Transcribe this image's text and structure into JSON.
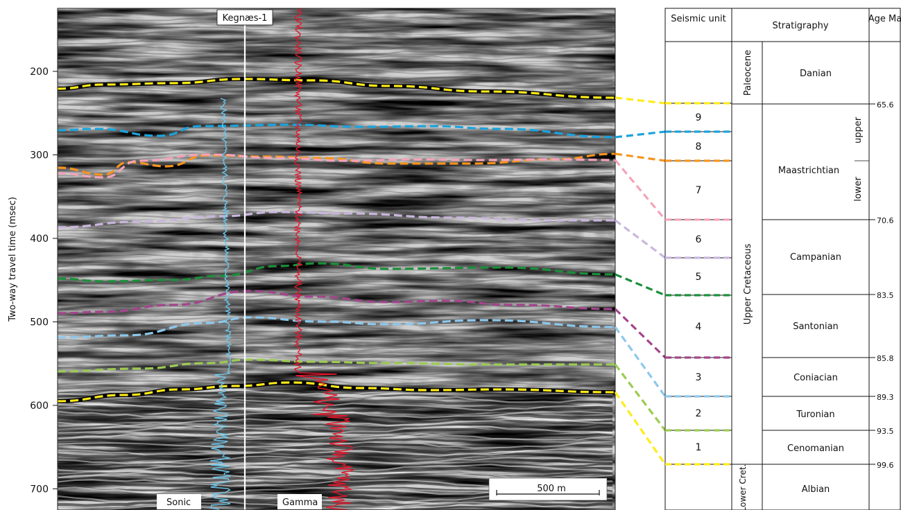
{
  "seismic_section": {
    "axis_label": "Two-way travel time (msec)",
    "ticks": [
      {
        "label": "200",
        "value": 200
      },
      {
        "label": "300",
        "value": 300
      },
      {
        "label": "400",
        "value": 400
      },
      {
        "label": "500",
        "value": 500
      },
      {
        "label": "600",
        "value": 600
      },
      {
        "label": "700",
        "value": 700
      }
    ],
    "well_name": "Kegnæs-1",
    "log_labels": {
      "sonic": "Sonic",
      "gamma": "Gamma"
    },
    "scale_bar": "500 m",
    "horizon_colors": {
      "yellow": "#ffeb1a",
      "blue": "#1aa3dd",
      "orange": "#f7941d",
      "pink": "#f4a3b8",
      "lavender": "#c9b6dd",
      "green": "#1b8f3a",
      "purple": "#a3458c",
      "lightblue": "#8cc8ec",
      "lightgreen": "#9ccb53",
      "black_outline": "#000000"
    },
    "log_colors": {
      "sonic": "#6ec6ea",
      "gamma": "#e0182d"
    }
  },
  "strat_table": {
    "headers": {
      "seismic_unit": "Seismic unit",
      "stratigraphy": "Stratigraphy",
      "age": "Age Ma"
    },
    "units": [
      "9",
      "8",
      "7",
      "6",
      "5",
      "4",
      "3",
      "2",
      "1"
    ],
    "series": {
      "paleocene": "Paleocene",
      "upper_cretaceous": "Upper Cretaceous",
      "lower_cret": "Lower Cret."
    },
    "stages": [
      "Danian",
      "Maastrichtian",
      "Campanian",
      "Santonian",
      "Coniacian",
      "Turonian",
      "Cenomanian",
      "Albian"
    ],
    "substages": {
      "upper": "upper",
      "lower": "lower"
    },
    "ages": [
      "65.6",
      "70.6",
      "83.5",
      "85.8",
      "89.3",
      "93.5",
      "99.6"
    ]
  }
}
